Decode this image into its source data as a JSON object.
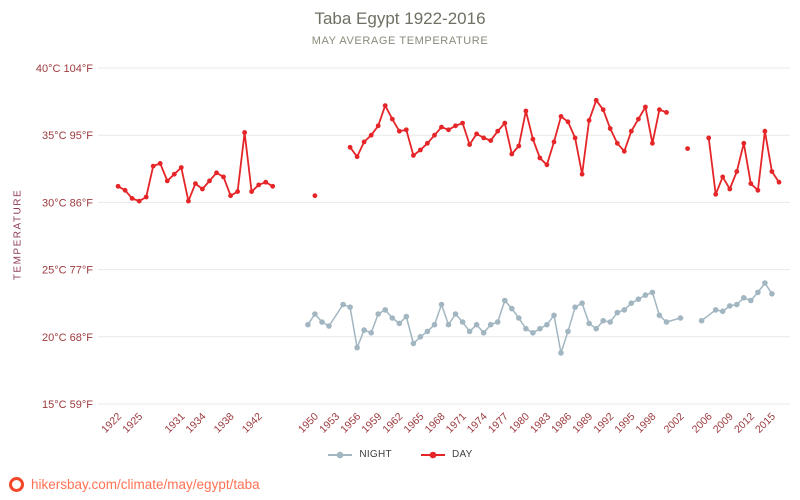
{
  "page": {
    "title": "Taba Egypt 1922-2016",
    "subtitle": "MAY AVERAGE TEMPERATURE",
    "watermark_text": "hikersbay.com/climate/may/egypt/taba"
  },
  "legend": {
    "night_label": "NIGHT",
    "day_label": "DAY"
  },
  "colors": {
    "day": "#e52528",
    "night": "#a2b6c1",
    "axis_text": "#9c3a3e",
    "ylabel_text": "#8f3a52",
    "title": "#6f6f63",
    "subtitle": "#8a8a7a",
    "grid": "#e9e9e7",
    "legend_text": "#3e3e3e",
    "watermark_text": "#ff7254",
    "watermark_icon": "#f4472a"
  },
  "chart_data": {
    "type": "line",
    "title": "Taba Egypt 1922-2016",
    "subtitle": "MAY AVERAGE TEMPERATURE",
    "xlabel": "",
    "ylabel": "TEMPERATURE",
    "xlim": [
      1920,
      2017
    ],
    "ylim": [
      15,
      40
    ],
    "grid": "horizontal",
    "legend_position": "bottom",
    "y_ticks": [
      {
        "value": 15,
        "label": "15°C 59°F"
      },
      {
        "value": 20,
        "label": "20°C 68°F"
      },
      {
        "value": 25,
        "label": "25°C 77°F"
      },
      {
        "value": 30,
        "label": "30°C 86°F"
      },
      {
        "value": 35,
        "label": "35°C 95°F"
      },
      {
        "value": 40,
        "label": "40°C 104°F"
      }
    ],
    "x_ticks": [
      1922,
      1925,
      1931,
      1934,
      1938,
      1942,
      1950,
      1953,
      1956,
      1959,
      1962,
      1965,
      1968,
      1971,
      1974,
      1977,
      1980,
      1983,
      1986,
      1989,
      1992,
      1995,
      1998,
      2002,
      2006,
      2009,
      2012,
      2015
    ],
    "series": [
      {
        "name": "NIGHT",
        "color": "#a2b6c1",
        "line_width": 1.5,
        "marker_radius": 2.8,
        "points": [
          [
            1949,
            20.9
          ],
          [
            1950,
            21.7
          ],
          [
            1951,
            21.1
          ],
          [
            1952,
            20.8
          ],
          [
            1954,
            22.4
          ],
          [
            1955,
            22.2
          ],
          [
            1956,
            19.2
          ],
          [
            1957,
            20.5
          ],
          [
            1958,
            20.3
          ],
          [
            1959,
            21.7
          ],
          [
            1960,
            22.0
          ],
          [
            1961,
            21.4
          ],
          [
            1962,
            21.0
          ],
          [
            1963,
            21.5
          ],
          [
            1964,
            19.5
          ],
          [
            1965,
            20.0
          ],
          [
            1966,
            20.4
          ],
          [
            1967,
            20.9
          ],
          [
            1968,
            22.4
          ],
          [
            1969,
            20.9
          ],
          [
            1970,
            21.7
          ],
          [
            1971,
            21.1
          ],
          [
            1972,
            20.4
          ],
          [
            1973,
            20.9
          ],
          [
            1974,
            20.3
          ],
          [
            1975,
            20.9
          ],
          [
            1976,
            21.1
          ],
          [
            1977,
            22.7
          ],
          [
            1978,
            22.1
          ],
          [
            1979,
            21.4
          ],
          [
            1980,
            20.6
          ],
          [
            1981,
            20.3
          ],
          [
            1982,
            20.6
          ],
          [
            1983,
            20.9
          ],
          [
            1984,
            21.6
          ],
          [
            1985,
            18.8
          ],
          [
            1986,
            20.4
          ],
          [
            1987,
            22.2
          ],
          [
            1988,
            22.5
          ],
          [
            1989,
            21.0
          ],
          [
            1990,
            20.6
          ],
          [
            1991,
            21.2
          ],
          [
            1992,
            21.1
          ],
          [
            1993,
            21.8
          ],
          [
            1994,
            22.0
          ],
          [
            1995,
            22.5
          ],
          [
            1996,
            22.8
          ],
          [
            1997,
            23.1
          ],
          [
            1998,
            23.3
          ],
          [
            1999,
            21.6
          ],
          [
            2000,
            21.1
          ],
          [
            2002,
            21.4
          ],
          [
            2005,
            21.2
          ],
          [
            2007,
            22.0
          ],
          [
            2008,
            21.9
          ],
          [
            2009,
            22.3
          ],
          [
            2010,
            22.4
          ],
          [
            2011,
            22.9
          ],
          [
            2012,
            22.7
          ],
          [
            2013,
            23.3
          ],
          [
            2014,
            24.0
          ],
          [
            2015,
            23.2
          ]
        ]
      },
      {
        "name": "DAY",
        "color": "#e52528",
        "line_width": 1.8,
        "marker_radius": 2.4,
        "points": [
          [
            1922,
            31.2
          ],
          [
            1923,
            30.9
          ],
          [
            1924,
            30.3
          ],
          [
            1925,
            30.1
          ],
          [
            1926,
            30.4
          ],
          [
            1927,
            32.7
          ],
          [
            1928,
            32.9
          ],
          [
            1929,
            31.6
          ],
          [
            1930,
            32.1
          ],
          [
            1931,
            32.6
          ],
          [
            1932,
            30.1
          ],
          [
            1933,
            31.4
          ],
          [
            1934,
            31.0
          ],
          [
            1935,
            31.6
          ],
          [
            1936,
            32.2
          ],
          [
            1937,
            31.9
          ],
          [
            1938,
            30.5
          ],
          [
            1939,
            30.8
          ],
          [
            1940,
            35.2
          ],
          [
            1941,
            30.8
          ],
          [
            1942,
            31.3
          ],
          [
            1943,
            31.5
          ],
          [
            1944,
            31.2
          ],
          [
            1950,
            30.5
          ],
          [
            1955,
            34.1
          ],
          [
            1956,
            33.4
          ],
          [
            1957,
            34.5
          ],
          [
            1958,
            35.0
          ],
          [
            1959,
            35.7
          ],
          [
            1960,
            37.2
          ],
          [
            1961,
            36.2
          ],
          [
            1962,
            35.3
          ],
          [
            1963,
            35.4
          ],
          [
            1964,
            33.5
          ],
          [
            1965,
            33.9
          ],
          [
            1966,
            34.4
          ],
          [
            1967,
            35.0
          ],
          [
            1968,
            35.6
          ],
          [
            1969,
            35.4
          ],
          [
            1970,
            35.7
          ],
          [
            1971,
            35.9
          ],
          [
            1972,
            34.3
          ],
          [
            1973,
            35.1
          ],
          [
            1974,
            34.8
          ],
          [
            1975,
            34.6
          ],
          [
            1976,
            35.3
          ],
          [
            1977,
            35.9
          ],
          [
            1978,
            33.6
          ],
          [
            1979,
            34.2
          ],
          [
            1980,
            36.8
          ],
          [
            1981,
            34.7
          ],
          [
            1982,
            33.3
          ],
          [
            1983,
            32.8
          ],
          [
            1984,
            34.5
          ],
          [
            1985,
            36.4
          ],
          [
            1986,
            36.0
          ],
          [
            1987,
            34.8
          ],
          [
            1988,
            32.1
          ],
          [
            1989,
            36.1
          ],
          [
            1990,
            37.6
          ],
          [
            1991,
            36.9
          ],
          [
            1992,
            35.5
          ],
          [
            1993,
            34.4
          ],
          [
            1994,
            33.8
          ],
          [
            1995,
            35.3
          ],
          [
            1996,
            36.2
          ],
          [
            1997,
            37.1
          ],
          [
            1998,
            34.4
          ],
          [
            1999,
            36.9
          ],
          [
            2000,
            36.7
          ],
          [
            2003,
            34.0
          ],
          [
            2006,
            34.8
          ],
          [
            2007,
            30.6
          ],
          [
            2008,
            31.9
          ],
          [
            2009,
            31.0
          ],
          [
            2010,
            32.3
          ],
          [
            2011,
            34.4
          ],
          [
            2012,
            31.4
          ],
          [
            2013,
            30.9
          ],
          [
            2014,
            35.3
          ],
          [
            2015,
            32.3
          ],
          [
            2016,
            31.5
          ]
        ]
      }
    ]
  }
}
